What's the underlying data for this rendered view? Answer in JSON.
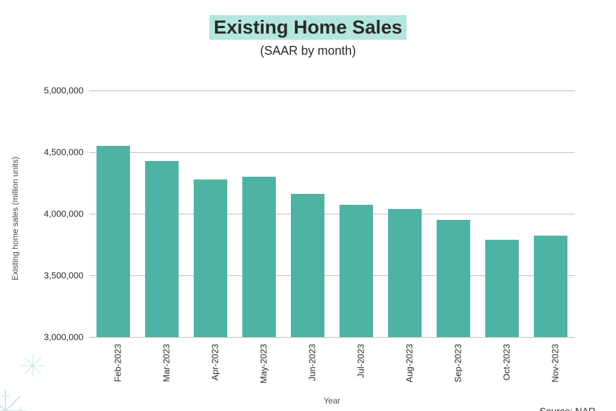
{
  "chart": {
    "type": "bar",
    "title": "Existing Home Sales",
    "subtitle": "(SAAR by month)",
    "title_fontsize": 28,
    "title_fontweight": 700,
    "title_highlight_color": "#b3e6dd",
    "subtitle_fontsize": 18,
    "subtitle_color": "#2a2a2a",
    "categories": [
      "Feb-2023",
      "Mar-2023",
      "Apr-2023",
      "May-2023",
      "Jun-2023",
      "Jul-2023",
      "Aug-2023",
      "Sep-2023",
      "Oct-2023",
      "Nov-2023"
    ],
    "values": [
      4550000,
      4430000,
      4280000,
      4300000,
      4160000,
      4070000,
      4040000,
      3950000,
      3790000,
      3820000
    ],
    "bar_color": "#4fb3a3",
    "ylabel": "Existing home sales (million units)",
    "xlabel": "Year",
    "ylim_min": 3000000,
    "ylim_max": 5000000,
    "ytick_step": 500000,
    "ytick_labels": [
      "3,000,000",
      "3,500,000",
      "4,000,000",
      "4,500,000",
      "5,000,000"
    ],
    "grid_color": "#bfbfbf",
    "grid_width": 1,
    "background_color": "#ffffff",
    "axis_label_fontsize": 12,
    "axis_label_color": "#4a4a4a",
    "tick_fontsize": 13,
    "tick_color": "#2a2a2a",
    "bar_width_ratio": 0.68,
    "source_text": "Source: NAR",
    "source_fontsize": 14,
    "source_color": "#2a2a2a",
    "decorative_color": "#a8d8d2"
  }
}
